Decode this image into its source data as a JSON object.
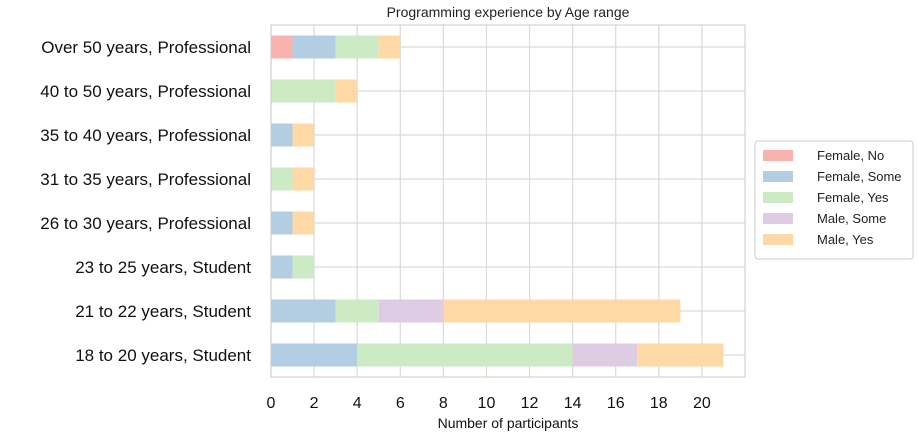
{
  "chart_data": {
    "type": "bar",
    "orientation": "horizontal",
    "stacked": true,
    "title": "Programming experience by Age range",
    "xlabel": "Number of participants",
    "ylabel": "",
    "xlim": [
      0,
      22
    ],
    "xticks": [
      0,
      2,
      4,
      6,
      8,
      10,
      12,
      14,
      16,
      18,
      20
    ],
    "grid": true,
    "legend_position": "right",
    "categories": [
      "Over 50 years, Professional",
      "40 to 50 years, Professional",
      "35 to 40 years, Professional",
      "31 to 35 years, Professional",
      "26 to 30 years, Professional",
      "23 to 25 years, Student",
      "21 to 22 years, Student",
      "18 to 20 years, Student"
    ],
    "series": [
      {
        "name": "Female, No",
        "color": "#f9b3ae",
        "values": [
          1,
          0,
          0,
          0,
          0,
          0,
          0,
          0
        ]
      },
      {
        "name": "Female, Some",
        "color": "#b3cde3",
        "values": [
          2,
          0,
          1,
          0,
          1,
          1,
          3,
          4
        ]
      },
      {
        "name": "Female, Yes",
        "color": "#ccebc5",
        "values": [
          2,
          3,
          0,
          1,
          0,
          1,
          2,
          10
        ]
      },
      {
        "name": "Male, Some",
        "color": "#decbe4",
        "values": [
          0,
          0,
          0,
          0,
          0,
          0,
          3,
          3
        ]
      },
      {
        "name": "Male, Yes",
        "color": "#fed9a6",
        "values": [
          1,
          1,
          1,
          1,
          1,
          0,
          11,
          4
        ]
      }
    ]
  }
}
